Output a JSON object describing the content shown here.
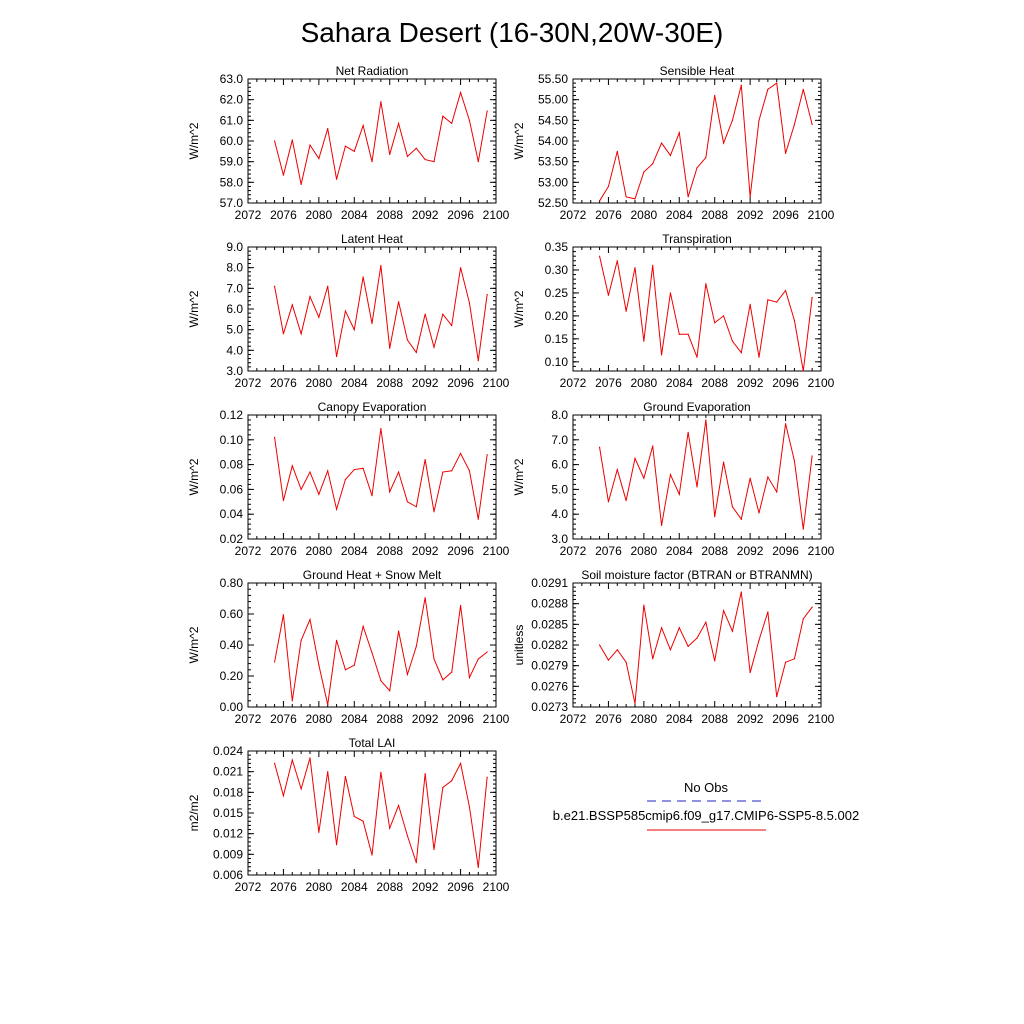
{
  "figure": {
    "title": "Sahara Desert (16-30N,20W-30E)"
  },
  "legend": {
    "obs_label": "No Obs",
    "model_label": "b.e21.BSSP585cmip6.f09_g17.CMIP6-SSP5-8.5.002",
    "obs_color": "#2222cc",
    "model_color": "#ee0000"
  },
  "chart_data": [
    {
      "type": "line",
      "title": "Net Radiation",
      "xlabel": "",
      "ylabel": "W/m^2",
      "xlim": [
        2072,
        2100
      ],
      "ylim": [
        57.0,
        63.0
      ],
      "xticks": [
        "2072",
        "2076",
        "2080",
        "2084",
        "2088",
        "2092",
        "2096",
        "2100"
      ],
      "yticks": [
        "57.0",
        "58.0",
        "59.0",
        "60.0",
        "61.0",
        "62.0",
        "63.0"
      ],
      "x": [
        2075,
        2076,
        2077,
        2078,
        2079,
        2080,
        2081,
        2082,
        2083,
        2084,
        2085,
        2086,
        2087,
        2088,
        2089,
        2090,
        2091,
        2092,
        2093,
        2094,
        2095,
        2096,
        2097,
        2098,
        2099
      ],
      "series": [
        {
          "values": [
            60.0,
            58.35,
            60.05,
            57.9,
            59.8,
            59.15,
            60.6,
            58.15,
            59.75,
            59.5,
            60.75,
            59.0,
            61.9,
            59.35,
            60.85,
            59.25,
            59.65,
            59.1,
            59.0,
            61.2,
            60.85,
            62.35,
            61.0,
            59.0,
            61.45
          ]
        }
      ]
    },
    {
      "type": "line",
      "title": "Sensible Heat",
      "xlabel": "",
      "ylabel": "W/m^2",
      "xlim": [
        2072,
        2100
      ],
      "ylim": [
        52.5,
        55.5
      ],
      "xticks": [
        "2072",
        "2076",
        "2080",
        "2084",
        "2088",
        "2092",
        "2096",
        "2100"
      ],
      "yticks": [
        "52.50",
        "53.00",
        "53.50",
        "54.00",
        "54.50",
        "55.00",
        "55.50"
      ],
      "x": [
        2075,
        2076,
        2077,
        2078,
        2079,
        2080,
        2081,
        2082,
        2083,
        2084,
        2085,
        2086,
        2087,
        2088,
        2089,
        2090,
        2091,
        2092,
        2093,
        2094,
        2095,
        2096,
        2097,
        2098,
        2099
      ],
      "series": [
        {
          "values": [
            52.55,
            52.9,
            53.75,
            52.65,
            52.6,
            53.25,
            53.45,
            53.95,
            53.65,
            54.2,
            52.65,
            53.35,
            53.6,
            55.1,
            53.95,
            54.5,
            55.35,
            52.65,
            54.5,
            55.25,
            55.4,
            53.7,
            54.4,
            55.25,
            54.4
          ]
        }
      ]
    },
    {
      "type": "line",
      "title": "Latent Heat",
      "xlabel": "",
      "ylabel": "W/m^2",
      "xlim": [
        2072,
        2100
      ],
      "ylim": [
        3.0,
        9.0
      ],
      "xticks": [
        "2072",
        "2076",
        "2080",
        "2084",
        "2088",
        "2092",
        "2096",
        "2100"
      ],
      "yticks": [
        "3.0",
        "4.0",
        "5.0",
        "6.0",
        "7.0",
        "8.0",
        "9.0"
      ],
      "x": [
        2075,
        2076,
        2077,
        2078,
        2079,
        2080,
        2081,
        2082,
        2083,
        2084,
        2085,
        2086,
        2087,
        2088,
        2089,
        2090,
        2091,
        2092,
        2093,
        2094,
        2095,
        2096,
        2097,
        2098,
        2099
      ],
      "series": [
        {
          "values": [
            7.1,
            4.8,
            6.2,
            4.8,
            6.6,
            5.6,
            7.1,
            3.7,
            5.9,
            5.0,
            7.55,
            5.3,
            8.1,
            4.1,
            6.35,
            4.5,
            3.9,
            5.75,
            4.15,
            5.75,
            5.2,
            8.0,
            6.3,
            3.5,
            6.7
          ]
        }
      ]
    },
    {
      "type": "line",
      "title": "Transpiration",
      "xlabel": "",
      "ylabel": "W/m^2",
      "xlim": [
        2072,
        2100
      ],
      "ylim": [
        0.08,
        0.35
      ],
      "xticks": [
        "2072",
        "2076",
        "2080",
        "2084",
        "2088",
        "2092",
        "2096",
        "2100"
      ],
      "yticks": [
        "0.10",
        "0.15",
        "0.20",
        "0.25",
        "0.30",
        "0.35"
      ],
      "x": [
        2075,
        2076,
        2077,
        2078,
        2079,
        2080,
        2081,
        2082,
        2083,
        2084,
        2085,
        2086,
        2087,
        2088,
        2089,
        2090,
        2091,
        2092,
        2093,
        2094,
        2095,
        2096,
        2097,
        2098,
        2099
      ],
      "series": [
        {
          "values": [
            0.33,
            0.245,
            0.32,
            0.21,
            0.305,
            0.145,
            0.31,
            0.115,
            0.25,
            0.16,
            0.16,
            0.11,
            0.27,
            0.185,
            0.2,
            0.145,
            0.12,
            0.225,
            0.11,
            0.235,
            0.23,
            0.255,
            0.19,
            0.08,
            0.24
          ]
        }
      ]
    },
    {
      "type": "line",
      "title": "Canopy Evaporation",
      "xlabel": "",
      "ylabel": "W/m^2",
      "xlim": [
        2072,
        2100
      ],
      "ylim": [
        0.02,
        0.12
      ],
      "xticks": [
        "2072",
        "2076",
        "2080",
        "2084",
        "2088",
        "2092",
        "2096",
        "2100"
      ],
      "yticks": [
        "0.02",
        "0.04",
        "0.06",
        "0.08",
        "0.10",
        "0.12"
      ],
      "x": [
        2075,
        2076,
        2077,
        2078,
        2079,
        2080,
        2081,
        2082,
        2083,
        2084,
        2085,
        2086,
        2087,
        2088,
        2089,
        2090,
        2091,
        2092,
        2093,
        2094,
        2095,
        2096,
        2097,
        2098,
        2099
      ],
      "series": [
        {
          "values": [
            0.102,
            0.051,
            0.079,
            0.06,
            0.074,
            0.056,
            0.075,
            0.044,
            0.068,
            0.076,
            0.077,
            0.055,
            0.109,
            0.058,
            0.074,
            0.05,
            0.046,
            0.084,
            0.042,
            0.074,
            0.075,
            0.089,
            0.075,
            0.036,
            0.088
          ]
        }
      ]
    },
    {
      "type": "line",
      "title": "Ground Evaporation",
      "xlabel": "",
      "ylabel": "W/m^2",
      "xlim": [
        2072,
        2100
      ],
      "ylim": [
        3.0,
        8.0
      ],
      "xticks": [
        "2072",
        "2076",
        "2080",
        "2084",
        "2088",
        "2092",
        "2096",
        "2100"
      ],
      "yticks": [
        "3.0",
        "4.0",
        "5.0",
        "6.0",
        "7.0",
        "8.0"
      ],
      "x": [
        2075,
        2076,
        2077,
        2078,
        2079,
        2080,
        2081,
        2082,
        2083,
        2084,
        2085,
        2086,
        2087,
        2088,
        2089,
        2090,
        2091,
        2092,
        2093,
        2094,
        2095,
        2096,
        2097,
        2098,
        2099
      ],
      "series": [
        {
          "values": [
            6.7,
            4.5,
            5.8,
            4.55,
            6.25,
            5.45,
            6.75,
            3.55,
            5.6,
            4.8,
            7.3,
            5.1,
            7.8,
            3.9,
            6.1,
            4.3,
            3.8,
            5.45,
            4.05,
            5.5,
            4.9,
            7.65,
            6.15,
            3.4,
            6.35
          ]
        }
      ]
    },
    {
      "type": "line",
      "title": "Ground Heat + Snow Melt",
      "xlabel": "",
      "ylabel": "W/m^2",
      "xlim": [
        2072,
        2100
      ],
      "ylim": [
        0.0,
        0.8
      ],
      "xticks": [
        "2072",
        "2076",
        "2080",
        "2084",
        "2088",
        "2092",
        "2096",
        "2100"
      ],
      "yticks": [
        "0.00",
        "0.20",
        "0.40",
        "0.60",
        "0.80"
      ],
      "x": [
        2075,
        2076,
        2077,
        2078,
        2079,
        2080,
        2081,
        2082,
        2083,
        2084,
        2085,
        2086,
        2087,
        2088,
        2089,
        2090,
        2091,
        2092,
        2093,
        2094,
        2095,
        2096,
        2097,
        2098,
        2099
      ],
      "series": [
        {
          "values": [
            0.29,
            0.595,
            0.04,
            0.43,
            0.565,
            0.27,
            0.015,
            0.43,
            0.24,
            0.27,
            0.52,
            0.35,
            0.17,
            0.105,
            0.49,
            0.21,
            0.39,
            0.705,
            0.31,
            0.175,
            0.225,
            0.655,
            0.19,
            0.31,
            0.355
          ]
        }
      ]
    },
    {
      "type": "line",
      "title": "Soil moisture factor (BTRAN or BTRANMN)",
      "xlabel": "",
      "ylabel": "unitless",
      "xlim": [
        2072,
        2100
      ],
      "ylim": [
        0.0273,
        0.0291
      ],
      "xticks": [
        "2072",
        "2076",
        "2080",
        "2084",
        "2088",
        "2092",
        "2096",
        "2100"
      ],
      "yticks": [
        "0.0273",
        "0.0276",
        "0.0279",
        "0.0282",
        "0.0285",
        "0.0288",
        "0.0291"
      ],
      "x": [
        2075,
        2076,
        2077,
        2078,
        2079,
        2080,
        2081,
        2082,
        2083,
        2084,
        2085,
        2086,
        2087,
        2088,
        2089,
        2090,
        2091,
        2092,
        2093,
        2094,
        2095,
        2096,
        2097,
        2098,
        2099
      ],
      "series": [
        {
          "values": [
            0.0282,
            0.02798,
            0.02813,
            0.02795,
            0.02735,
            0.02878,
            0.028,
            0.02845,
            0.02813,
            0.02845,
            0.02818,
            0.0283,
            0.02853,
            0.02797,
            0.0287,
            0.0284,
            0.02897,
            0.0278,
            0.02827,
            0.02868,
            0.02745,
            0.02795,
            0.028,
            0.02858,
            0.02875
          ]
        }
      ]
    },
    {
      "type": "line",
      "title": "Total LAI",
      "xlabel": "",
      "ylabel": "m2/m2",
      "xlim": [
        2072,
        2100
      ],
      "ylim": [
        0.006,
        0.024
      ],
      "xticks": [
        "2072",
        "2076",
        "2080",
        "2084",
        "2088",
        "2092",
        "2096",
        "2100"
      ],
      "yticks": [
        "0.006",
        "0.009",
        "0.012",
        "0.015",
        "0.018",
        "0.021",
        "0.024"
      ],
      "x": [
        2075,
        2076,
        2077,
        2078,
        2079,
        2080,
        2081,
        2082,
        2083,
        2084,
        2085,
        2086,
        2087,
        2088,
        2089,
        2090,
        2091,
        2092,
        2093,
        2094,
        2095,
        2096,
        2097,
        2098,
        2099
      ],
      "series": [
        {
          "values": [
            0.0222,
            0.0175,
            0.0227,
            0.0185,
            0.023,
            0.0122,
            0.021,
            0.0104,
            0.0203,
            0.0145,
            0.0138,
            0.0089,
            0.0209,
            0.0128,
            0.0161,
            0.0117,
            0.0078,
            0.0207,
            0.0097,
            0.0187,
            0.0197,
            0.0222,
            0.0159,
            0.0071,
            0.0202
          ]
        }
      ]
    }
  ]
}
